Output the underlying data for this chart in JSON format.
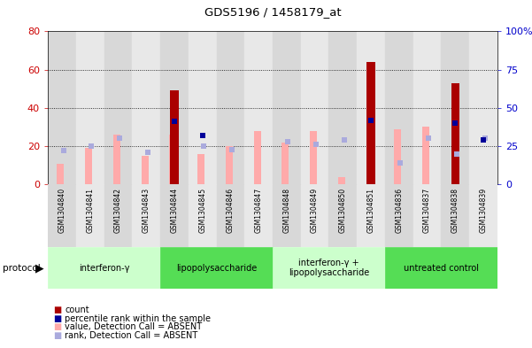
{
  "title": "GDS5196 / 1458179_at",
  "samples": [
    "GSM1304840",
    "GSM1304841",
    "GSM1304842",
    "GSM1304843",
    "GSM1304844",
    "GSM1304845",
    "GSM1304846",
    "GSM1304847",
    "GSM1304848",
    "GSM1304849",
    "GSM1304850",
    "GSM1304851",
    "GSM1304836",
    "GSM1304837",
    "GSM1304838",
    "GSM1304839"
  ],
  "count_values": [
    0,
    0,
    0,
    0,
    49,
    0,
    0,
    0,
    0,
    0,
    0,
    64,
    0,
    0,
    53,
    0
  ],
  "rank_values": [
    0,
    0,
    0,
    0,
    41,
    32,
    0,
    0,
    0,
    0,
    0,
    42,
    0,
    0,
    40,
    29
  ],
  "absent_value_values": [
    11,
    19,
    26,
    15,
    26,
    16,
    20,
    28,
    22,
    28,
    4,
    30,
    29,
    30,
    0,
    0
  ],
  "absent_rank_values": [
    22,
    25,
    30,
    21,
    0,
    25,
    23,
    0,
    28,
    26,
    29,
    0,
    14,
    30,
    20,
    30
  ],
  "groups": [
    {
      "label": "interferon-γ",
      "start": 0,
      "end": 4,
      "color": "#ccffcc"
    },
    {
      "label": "lipopolysaccharide",
      "start": 4,
      "end": 8,
      "color": "#55dd55"
    },
    {
      "label": "interferon-γ +\nlipopolysaccharide",
      "start": 8,
      "end": 12,
      "color": "#ccffcc"
    },
    {
      "label": "untreated control",
      "start": 12,
      "end": 16,
      "color": "#55dd55"
    }
  ],
  "left_ylim": [
    0,
    80
  ],
  "right_ylim": [
    0,
    100
  ],
  "left_yticks": [
    0,
    20,
    40,
    60,
    80
  ],
  "right_yticks": [
    0,
    25,
    50,
    75,
    100
  ],
  "left_color": "#cc0000",
  "right_color": "#0000cc",
  "count_color": "#aa0000",
  "rank_color": "#000099",
  "absent_value_color": "#ffaaaa",
  "absent_rank_color": "#aaaadd",
  "plot_bg": "#ffffff",
  "chart_bg": "#e8e8e8",
  "col_bg_odd": "#d8d8d8",
  "col_bg_even": "#e8e8e8"
}
